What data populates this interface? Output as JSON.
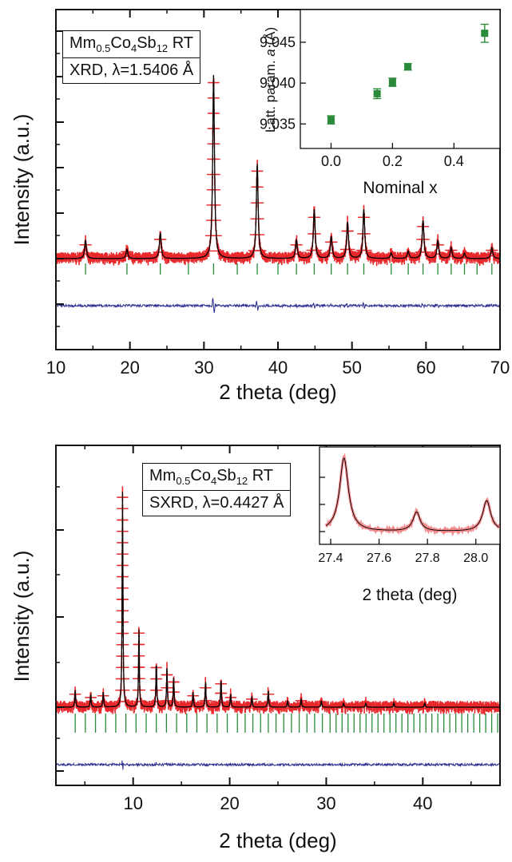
{
  "chart_data": [
    {
      "type": "scatter",
      "panel": "top",
      "xlabel": "2 theta (deg)",
      "ylabel": "Intensity (a.u.)",
      "xlim": [
        10,
        70
      ],
      "xticks": [
        10,
        20,
        30,
        40,
        50,
        60,
        70
      ],
      "grid": false,
      "legend": {
        "line1": {
          "prefix": "Mm",
          "sub1": "0.5",
          "mid": "Co",
          "sub2": "4",
          "mid2": "Sb",
          "sub3": "12",
          "suffix": " RT"
        },
        "line2": "XRD, λ=1.5406 Å"
      },
      "peaks": [
        {
          "x": 14.0,
          "h": 0.1
        },
        {
          "x": 19.6,
          "h": 0.05
        },
        {
          "x": 24.1,
          "h": 0.14
        },
        {
          "x": 31.3,
          "h": 1.0
        },
        {
          "x": 37.2,
          "h": 0.52
        },
        {
          "x": 42.5,
          "h": 0.1
        },
        {
          "x": 44.9,
          "h": 0.27
        },
        {
          "x": 47.2,
          "h": 0.12
        },
        {
          "x": 49.4,
          "h": 0.2
        },
        {
          "x": 51.6,
          "h": 0.27
        },
        {
          "x": 55.3,
          "h": 0.03
        },
        {
          "x": 57.6,
          "h": 0.04
        },
        {
          "x": 59.6,
          "h": 0.21
        },
        {
          "x": 61.6,
          "h": 0.1
        },
        {
          "x": 63.4,
          "h": 0.06
        },
        {
          "x": 65.2,
          "h": 0.03
        },
        {
          "x": 68.9,
          "h": 0.06
        }
      ],
      "bragg_positions": [
        14.0,
        19.6,
        24.1,
        27.9,
        31.3,
        34.5,
        37.2,
        40.0,
        42.5,
        44.9,
        47.2,
        49.4,
        51.6,
        55.3,
        57.6,
        59.6,
        61.6,
        63.4,
        65.2,
        66.9,
        68.9
      ],
      "inset": {
        "type": "scatter",
        "xlabel": "Nominal x",
        "ylabel_parts": {
          "pre": "Latt. param. ",
          "var": "a",
          "post": " (Å)"
        },
        "xlim": [
          -0.1,
          0.55
        ],
        "ylim": [
          9.032,
          9.049
        ],
        "xticks": [
          0.0,
          0.2,
          0.4
        ],
        "yticks": [
          9.035,
          9.04,
          9.045
        ],
        "x": [
          0.0,
          0.15,
          0.2,
          0.25,
          0.5
        ],
        "y": [
          9.0355,
          9.0387,
          9.0401,
          9.042,
          9.0461
        ],
        "yerr": [
          0.0005,
          0.0006,
          0.0005,
          0.0004,
          0.0011
        ],
        "color": "#2a8a3a"
      }
    },
    {
      "type": "scatter",
      "panel": "bottom",
      "xlabel": "2 theta (deg)",
      "ylabel": "Intensity (a.u.)",
      "xlim": [
        2,
        48
      ],
      "xticks": [
        10,
        20,
        30,
        40
      ],
      "grid": false,
      "legend": {
        "line1": {
          "prefix": "Mm",
          "sub1": "0.5",
          "mid": "Co",
          "sub2": "4",
          "mid2": "Sb",
          "sub3": "12",
          "suffix": " RT"
        },
        "line2": "SXRD, λ=0.4427 Å"
      },
      "peaks": [
        {
          "x": 4.0,
          "h": 0.08
        },
        {
          "x": 5.6,
          "h": 0.06
        },
        {
          "x": 6.9,
          "h": 0.07
        },
        {
          "x": 8.9,
          "h": 1.0
        },
        {
          "x": 10.6,
          "h": 0.37
        },
        {
          "x": 12.4,
          "h": 0.21
        },
        {
          "x": 13.5,
          "h": 0.18
        },
        {
          "x": 14.2,
          "h": 0.14
        },
        {
          "x": 16.2,
          "h": 0.07
        },
        {
          "x": 17.5,
          "h": 0.12
        },
        {
          "x": 19.1,
          "h": 0.13
        },
        {
          "x": 20.1,
          "h": 0.06
        },
        {
          "x": 22.3,
          "h": 0.05
        },
        {
          "x": 24.0,
          "h": 0.08
        },
        {
          "x": 26.0,
          "h": 0.03
        },
        {
          "x": 27.4,
          "h": 0.04
        },
        {
          "x": 29.5,
          "h": 0.03
        },
        {
          "x": 31.8,
          "h": 0.02
        },
        {
          "x": 34.1,
          "h": 0.02
        },
        {
          "x": 37.0,
          "h": 0.02
        },
        {
          "x": 40.2,
          "h": 0.02
        }
      ],
      "inset": {
        "type": "line",
        "xlabel": "2 theta (deg)",
        "xlim": [
          27.4,
          28.1
        ],
        "xticks": [
          27.4,
          27.6,
          27.8,
          28.0
        ],
        "peaks": [
          {
            "x": 27.455,
            "h": 1.0,
            "w": 0.022
          },
          {
            "x": 27.755,
            "h": 0.26,
            "w": 0.018
          },
          {
            "x": 28.045,
            "h": 0.42,
            "w": 0.02
          }
        ]
      }
    }
  ]
}
